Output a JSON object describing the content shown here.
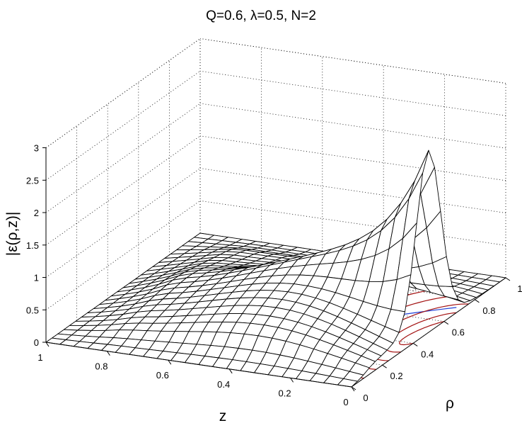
{
  "chart_data": {
    "type": "surface",
    "title": "Q=0.6, λ=0.5, N=2",
    "xlabel": "z",
    "ylabel": "ρ",
    "zlabel": "|ε(ρ,z)|",
    "xlim": [
      0,
      1
    ],
    "ylim": [
      0,
      1
    ],
    "zlim": [
      0,
      3
    ],
    "x_ticks": [
      "0",
      "0.2",
      "0.4",
      "0.6",
      "0.8",
      "1"
    ],
    "y_ticks": [
      "0",
      "0.2",
      "0.4",
      "0.6",
      "0.8",
      "1"
    ],
    "z_ticks": [
      "0",
      "0.5",
      "1",
      "1.5",
      "2",
      "2.5",
      "3"
    ],
    "grid": true,
    "surface_peak": {
      "z": 0.0,
      "rho": 0.5,
      "value": 2.65
    },
    "contour_colors": {
      "outer": "#1f3fd6",
      "inner": "#a31212"
    }
  }
}
